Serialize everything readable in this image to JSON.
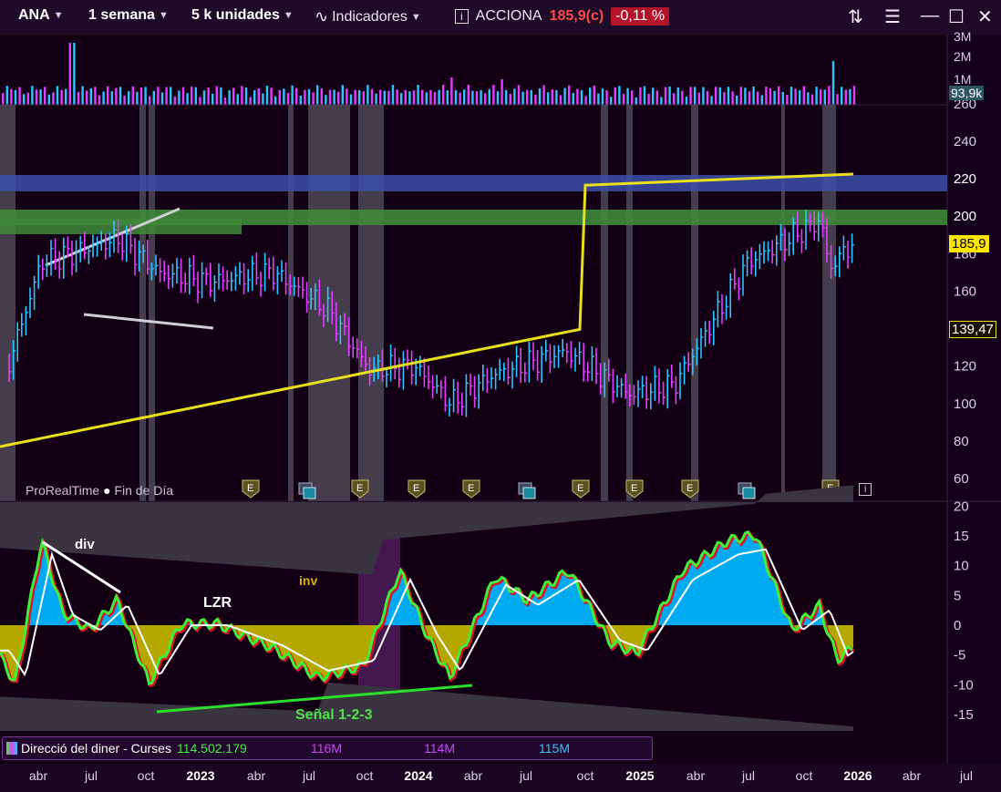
{
  "toolbar": {
    "symbol": "ANA",
    "period": "1 semana",
    "units": "5 k unidades",
    "indicators": "Indicadores",
    "info_icon": "info-icon",
    "name": "ACCIONA",
    "price": "185,9(c)",
    "change": "-0,11 %"
  },
  "footer": {
    "provider": "ProRealTime",
    "session": "Fin de Día"
  },
  "volume_axis": {
    "ticks": [
      "3M",
      "2M",
      "1M"
    ],
    "current": "93,9k"
  },
  "price_axis": {
    "ticks": [
      "260",
      "240",
      "220",
      "200",
      "180",
      "160",
      "140",
      "120",
      "100",
      "80",
      "60"
    ]
  },
  "price_tags": {
    "last": "185,9",
    "ma": "139,47"
  },
  "annotations": {
    "div": "div",
    "lzr": "LZR",
    "inv": "inv",
    "signal": "Señal 1-2-3"
  },
  "osc_axis": {
    "ticks": [
      "20",
      "15",
      "10",
      "5",
      "0",
      "-5",
      "-10",
      "-15"
    ]
  },
  "legend": {
    "title": "Direcció del diner - Curses",
    "v1": "114.502.179",
    "v2": "116M",
    "v3": "114M",
    "v4": "115M"
  },
  "x_axis": [
    {
      "label": "abr",
      "year": false
    },
    {
      "label": "jul",
      "year": false
    },
    {
      "label": "oct",
      "year": false
    },
    {
      "label": "2023",
      "year": true
    },
    {
      "label": "abr",
      "year": false
    },
    {
      "label": "jul",
      "year": false
    },
    {
      "label": "oct",
      "year": false
    },
    {
      "label": "2024",
      "year": true
    },
    {
      "label": "abr",
      "year": false
    },
    {
      "label": "jul",
      "year": false
    },
    {
      "label": "oct",
      "year": false
    },
    {
      "label": "2025",
      "year": true
    },
    {
      "label": "abr",
      "year": false
    },
    {
      "label": "jul",
      "year": false
    },
    {
      "label": "oct",
      "year": false
    },
    {
      "label": "2026",
      "year": true
    },
    {
      "label": "abr",
      "year": false
    },
    {
      "label": "jul",
      "year": false
    }
  ],
  "colors": {
    "bull": "#2ec4ff",
    "bear": "#e040ff",
    "ma": "#e8e01a",
    "osc_pos": "#00aaf0",
    "osc_neg": "#b4a800"
  },
  "chart_data": {
    "type": "line",
    "title": "ACCIONA",
    "x": [
      "2022-03",
      "2022-06",
      "2022-07",
      "2022-09",
      "2022-12",
      "2023-03",
      "2023-06",
      "2023-09",
      "2023-12",
      "2024-03",
      "2024-06",
      "2024-09",
      "2024-12",
      "2025-03",
      "2025-06",
      "2025-09",
      "2025-11",
      "2025-12"
    ],
    "series": [
      {
        "name": "ACCIONA",
        "values": [
          122,
          175,
          188,
          170,
          165,
          170,
          150,
          118,
          120,
          100,
          115,
          128,
          105,
          110,
          175,
          198,
          172,
          185.9
        ]
      }
    ],
    "ylim": [
      60,
      260
    ],
    "events_icon_count": 10
  }
}
